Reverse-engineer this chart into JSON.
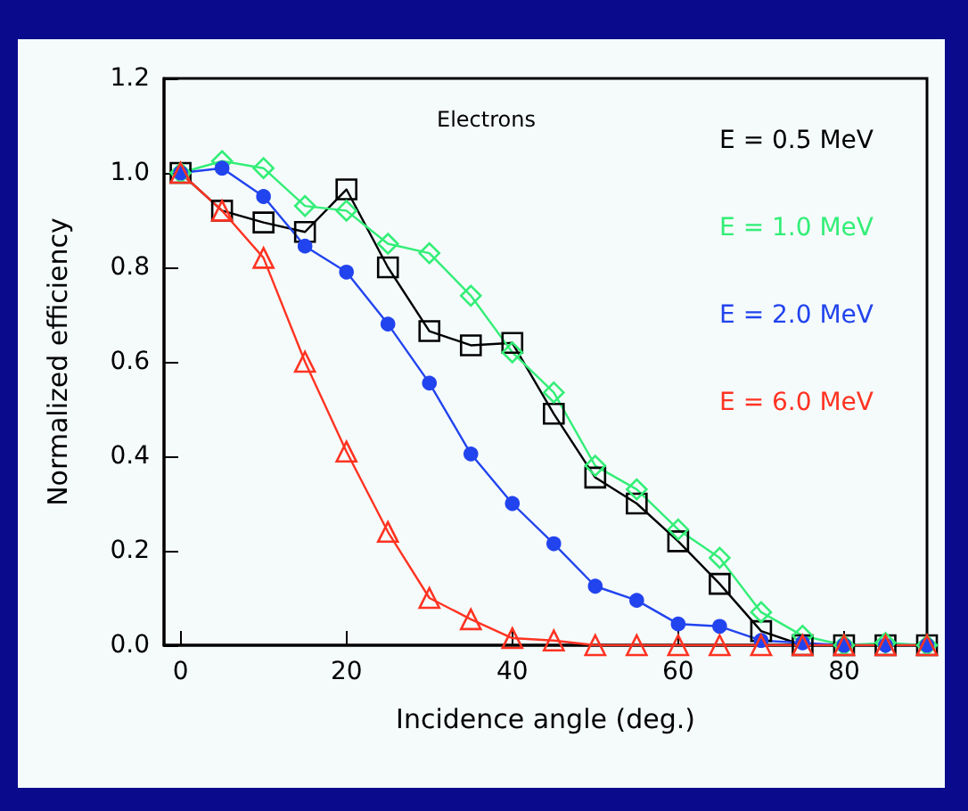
{
  "chart_data": {
    "type": "line",
    "title": "Electrons",
    "xlabel": "Incidence angle (deg.)",
    "ylabel": "Normalized efficiency",
    "x": [
      0,
      5,
      10,
      15,
      20,
      25,
      30,
      35,
      40,
      45,
      50,
      55,
      60,
      65,
      70,
      75,
      80,
      85,
      90
    ],
    "xlim": [
      -2,
      90
    ],
    "xticks": [
      0,
      20,
      40,
      60,
      80
    ],
    "ylim": [
      0,
      1.2
    ],
    "yticks": [
      {
        "value": 0,
        "label": "0.0"
      },
      0.2,
      0.4,
      0.6,
      0.8,
      {
        "value": 1,
        "label": "1.0"
      },
      1.2
    ],
    "legend": "top right",
    "grid": false,
    "series": [
      {
        "name": "E = 0.5 MeV",
        "color": "#000000",
        "marker": "square",
        "values": [
          1.0,
          0.92,
          0.895,
          0.875,
          0.965,
          0.8,
          0.665,
          0.635,
          0.64,
          0.49,
          0.355,
          0.3,
          0.22,
          0.13,
          0.03,
          0.0,
          0.0,
          0.0,
          0.0
        ]
      },
      {
        "name": "E = 1.0 MeV",
        "color": "#33ee77",
        "marker": "diamond",
        "values": [
          1.0,
          1.025,
          1.01,
          0.93,
          0.92,
          0.85,
          0.83,
          0.74,
          0.62,
          0.535,
          0.38,
          0.33,
          0.245,
          0.185,
          0.07,
          0.02,
          0.0,
          0.005,
          0.0
        ]
      },
      {
        "name": "E = 2.0 MeV",
        "color": "#2244ee",
        "marker": "circle",
        "values": [
          1.0,
          1.01,
          0.95,
          0.845,
          0.79,
          0.68,
          0.555,
          0.405,
          0.3,
          0.215,
          0.125,
          0.095,
          0.045,
          0.04,
          0.01,
          0.005,
          0.0,
          0.0,
          0.0
        ]
      },
      {
        "name": "E = 6.0 MeV",
        "color": "#ff3322",
        "marker": "triangle",
        "values": [
          1.0,
          0.92,
          0.82,
          0.6,
          0.41,
          0.24,
          0.1,
          0.055,
          0.015,
          0.01,
          0.0,
          0.0,
          0.0,
          0.0,
          0.0,
          0.0,
          0.0,
          0.0,
          0.0
        ]
      }
    ]
  }
}
